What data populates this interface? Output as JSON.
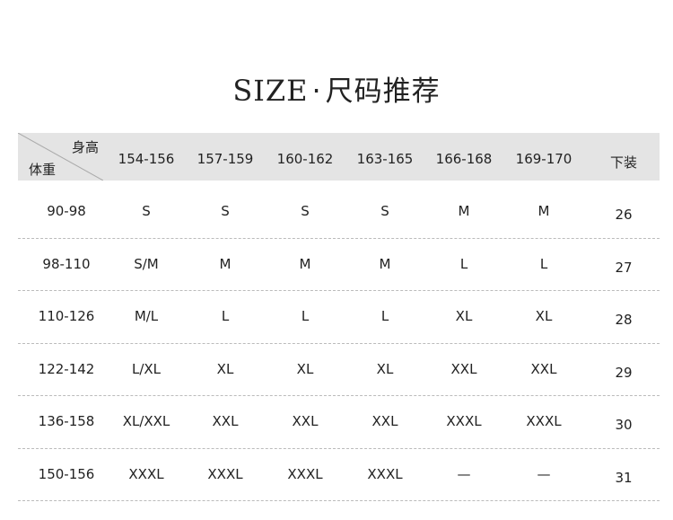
{
  "title": {
    "en": "SIZE",
    "sep": "·",
    "zh": "尺码推荐"
  },
  "header": {
    "corner_top": "身高",
    "corner_bottom": "体重",
    "columns": [
      "154-156",
      "157-159",
      "160-162",
      "163-165",
      "166-168",
      "169-170",
      "下装"
    ]
  },
  "rows": [
    {
      "weight": "90-98",
      "sizes": [
        "S",
        "S",
        "S",
        "S",
        "M",
        "M"
      ],
      "bottom": "26"
    },
    {
      "weight": "98-110",
      "sizes": [
        "S/M",
        "M",
        "M",
        "M",
        "L",
        "L"
      ],
      "bottom": "27"
    },
    {
      "weight": "110-126",
      "sizes": [
        "M/L",
        "L",
        "L",
        "L",
        "XL",
        "XL"
      ],
      "bottom": "28"
    },
    {
      "weight": "122-142",
      "sizes": [
        "L/XL",
        "XL",
        "XL",
        "XL",
        "XXL",
        "XXL"
      ],
      "bottom": "29"
    },
    {
      "weight": "136-158",
      "sizes": [
        "XL/XXL",
        "XXL",
        "XXL",
        "XXL",
        "XXXL",
        "XXXL"
      ],
      "bottom": "30"
    },
    {
      "weight": "150-156",
      "sizes": [
        "XXXL",
        "XXXL",
        "XXXL",
        "XXXL",
        "—",
        "—"
      ],
      "bottom": "31"
    }
  ]
}
